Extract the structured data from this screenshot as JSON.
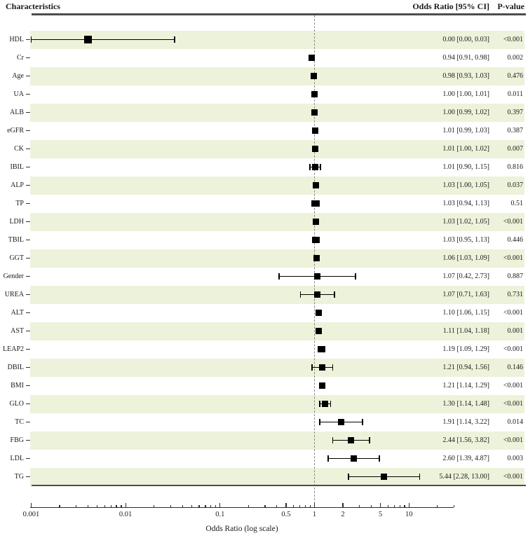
{
  "header": {
    "characteristics": "Characteristics",
    "or_ci": "Odds Ratio [95% CI]",
    "p_value": "P-value"
  },
  "chart_data": {
    "type": "forest",
    "title": "",
    "xlabel": "Odds Ratio (log scale)",
    "x_scale": "log",
    "x_range": [
      0.001,
      30
    ],
    "reference_line": 1,
    "grid": false,
    "x_ticks": [
      {
        "v": 0.001,
        "label": "0.001"
      },
      {
        "v": 0.01,
        "label": "0.01"
      },
      {
        "v": 0.1,
        "label": "0.1"
      },
      {
        "v": 0.5,
        "label": "0.5"
      },
      {
        "v": 1,
        "label": "1"
      },
      {
        "v": 2,
        "label": "2"
      },
      {
        "v": 5,
        "label": "5"
      },
      {
        "v": 10,
        "label": "10"
      }
    ],
    "rows": [
      {
        "label": "HDL",
        "or": 0.0,
        "lo": 0.0,
        "hi": 0.03,
        "or_text": "0.00 [0.00, 0.03]",
        "p": "<0.001",
        "plot": {
          "or": 0.004,
          "lo": 0.001,
          "hi": 0.033
        },
        "ms": 11
      },
      {
        "label": "Cr",
        "or": 0.94,
        "lo": 0.91,
        "hi": 0.98,
        "or_text": "0.94 [0.91, 0.98]",
        "p": "0.002"
      },
      {
        "label": "Age",
        "or": 0.98,
        "lo": 0.93,
        "hi": 1.03,
        "or_text": "0.98 [0.93, 1.03]",
        "p": "0.476"
      },
      {
        "label": "UA",
        "or": 1.0,
        "lo": 1.0,
        "hi": 1.01,
        "or_text": "1.00 [1.00, 1.01]",
        "p": "0.011"
      },
      {
        "label": "ALB",
        "or": 1.0,
        "lo": 0.99,
        "hi": 1.02,
        "or_text": "1.00 [0.99, 1.02]",
        "p": "0.397"
      },
      {
        "label": "eGFR",
        "or": 1.01,
        "lo": 0.99,
        "hi": 1.03,
        "or_text": "1.01 [0.99, 1.03]",
        "p": "0.387"
      },
      {
        "label": "CK",
        "or": 1.01,
        "lo": 1.0,
        "hi": 1.02,
        "or_text": "1.01 [1.00, 1.02]",
        "p": "0.007"
      },
      {
        "label": "IBIL",
        "or": 1.01,
        "lo": 0.9,
        "hi": 1.15,
        "or_text": "1.01 [0.90, 1.15]",
        "p": "0.816"
      },
      {
        "label": "ALP",
        "or": 1.03,
        "lo": 1.0,
        "hi": 1.05,
        "or_text": "1.03 [1.00, 1.05]",
        "p": "0.037"
      },
      {
        "label": "TP",
        "or": 1.03,
        "lo": 0.94,
        "hi": 1.13,
        "or_text": "1.03 [0.94, 1.13]",
        "p": "0.51"
      },
      {
        "label": "LDH",
        "or": 1.03,
        "lo": 1.02,
        "hi": 1.05,
        "or_text": "1.03 [1.02, 1.05]",
        "p": "<0.001"
      },
      {
        "label": "TBIL",
        "or": 1.03,
        "lo": 0.95,
        "hi": 1.13,
        "or_text": "1.03 [0.95, 1.13]",
        "p": "0.446"
      },
      {
        "label": "GGT",
        "or": 1.06,
        "lo": 1.03,
        "hi": 1.09,
        "or_text": "1.06 [1.03, 1.09]",
        "p": "<0.001"
      },
      {
        "label": "Gender",
        "or": 1.07,
        "lo": 0.42,
        "hi": 2.73,
        "or_text": "1.07 [0.42, 2.73]",
        "p": "0.887"
      },
      {
        "label": "UREA",
        "or": 1.07,
        "lo": 0.71,
        "hi": 1.63,
        "or_text": "1.07 [0.71, 1.63]",
        "p": "0.731"
      },
      {
        "label": "ALT",
        "or": 1.1,
        "lo": 1.06,
        "hi": 1.15,
        "or_text": "1.10 [1.06, 1.15]",
        "p": "<0.001"
      },
      {
        "label": "AST",
        "or": 1.11,
        "lo": 1.04,
        "hi": 1.18,
        "or_text": "1.11 [1.04, 1.18]",
        "p": "0.001"
      },
      {
        "label": "LEAP2",
        "or": 1.19,
        "lo": 1.09,
        "hi": 1.29,
        "or_text": "1.19 [1.09, 1.29]",
        "p": "<0.001"
      },
      {
        "label": "DBIL",
        "or": 1.21,
        "lo": 0.94,
        "hi": 1.56,
        "or_text": "1.21 [0.94, 1.56]",
        "p": "0.146"
      },
      {
        "label": "BMI",
        "or": 1.21,
        "lo": 1.14,
        "hi": 1.29,
        "or_text": "1.21 [1.14, 1.29]",
        "p": "<0.001"
      },
      {
        "label": "GLO",
        "or": 1.3,
        "lo": 1.14,
        "hi": 1.48,
        "or_text": "1.30 [1.14, 1.48]",
        "p": "<0.001"
      },
      {
        "label": "TC",
        "or": 1.91,
        "lo": 1.14,
        "hi": 3.22,
        "or_text": "1.91 [1.14, 3.22]",
        "p": "0.014"
      },
      {
        "label": "FBG",
        "or": 2.44,
        "lo": 1.56,
        "hi": 3.82,
        "or_text": "2.44 [1.56, 3.82]",
        "p": "<0.001"
      },
      {
        "label": "LDL",
        "or": 2.6,
        "lo": 1.39,
        "hi": 4.87,
        "or_text": "2.60 [1.39, 4.87]",
        "p": "0.003"
      },
      {
        "label": "TG",
        "or": 5.44,
        "lo": 2.28,
        "hi": 13.0,
        "or_text": "5.44 [2.28, 13.00]",
        "p": "<0.001"
      }
    ],
    "colors": {
      "band": "#edf2da",
      "rule": "#4d4d4d",
      "marker": "#000000",
      "reference_dash": "#8a8a8a"
    },
    "legend": null
  }
}
